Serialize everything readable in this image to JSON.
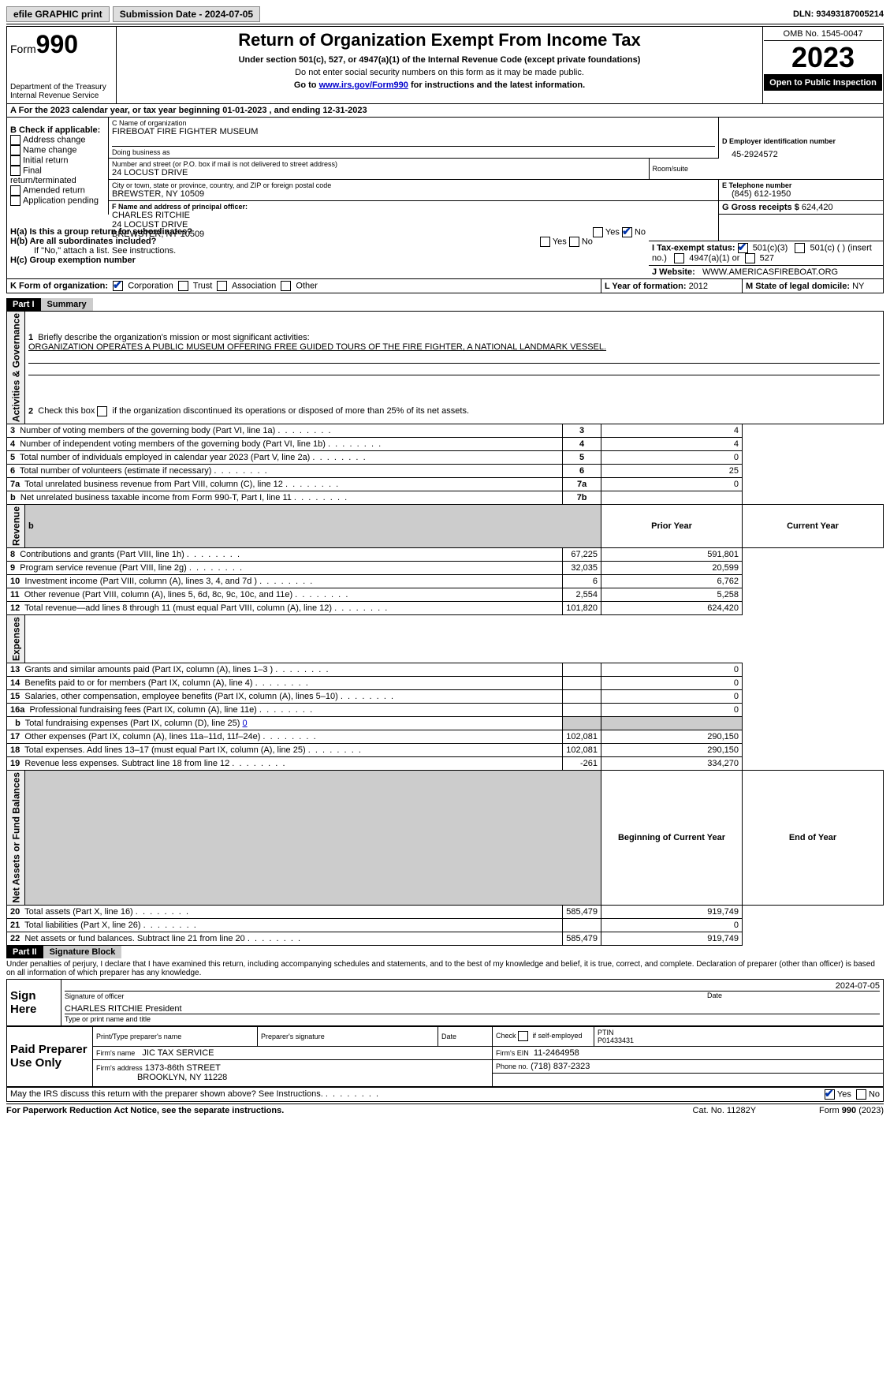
{
  "topbar": {
    "efile": "efile GRAPHIC print",
    "submission": "Submission Date - 2024-07-05",
    "dln": "DLN: 93493187005214"
  },
  "header": {
    "form_label": "Form",
    "form_num": "990",
    "title": "Return of Organization Exempt From Income Tax",
    "subtitle": "Under section 501(c), 527, or 4947(a)(1) of the Internal Revenue Code (except private foundations)",
    "note1": "Do not enter social security numbers on this form as it may be made public.",
    "note2": "Go to ",
    "note2_link": "www.irs.gov/Form990",
    "note2_tail": " for instructions and the latest information.",
    "dept": "Department of the Treasury\nInternal Revenue Service",
    "omb": "OMB No. 1545-0047",
    "year": "2023",
    "open": "Open to Public Inspection"
  },
  "rowA": "For the 2023 calendar year, or tax year beginning 01-01-2023   , and ending 12-31-2023",
  "boxB": {
    "label": "B Check if applicable:",
    "items": [
      "Address change",
      "Name change",
      "Initial return",
      "Final return/terminated",
      "Amended return",
      "Application pending"
    ]
  },
  "boxC": {
    "name_label": "C Name of organization",
    "name": "FIREBOAT FIRE FIGHTER MUSEUM",
    "dba_label": "Doing business as",
    "street_label": "Number and street (or P.O. box if mail is not delivered to street address)",
    "room_label": "Room/suite",
    "street": "24 LOCUST DRIVE",
    "city_label": "City or town, state or province, country, and ZIP or foreign postal code",
    "city": "BREWSTER, NY  10509"
  },
  "boxD": {
    "label": "D Employer identification number",
    "value": "45-2924572"
  },
  "boxE": {
    "label": "E Telephone number",
    "value": "(845) 612-1950"
  },
  "boxG": {
    "label": "G Gross receipts $ ",
    "value": "624,420"
  },
  "boxF": {
    "label": "F  Name and address of principal officer:",
    "lines": [
      "CHARLES RITCHIE",
      "24 LOCUST DRIVE",
      "BREWSTER, NY  10509"
    ]
  },
  "boxH": {
    "a": "H(a)  Is this a group return for subordinates?",
    "b": "H(b)  Are all subordinates included?",
    "b_note": "If \"No,\" attach a list. See instructions.",
    "c": "H(c)  Group exemption number"
  },
  "rowI": {
    "label": "I   Tax-exempt status:",
    "opt1": "501(c)(3)",
    "opt2": "501(c) (  ) (insert no.)",
    "opt3": "4947(a)(1) or",
    "opt4": "527"
  },
  "rowJ": {
    "label": "J   Website:",
    "value": "WWW.AMERICASFIREBOAT.ORG"
  },
  "rowK": {
    "label": "K Form of organization:",
    "opts": [
      "Corporation",
      "Trust",
      "Association",
      "Other"
    ]
  },
  "rowL": {
    "label": "L Year of formation: ",
    "value": "2012"
  },
  "rowM": {
    "label": "M State of legal domicile: ",
    "value": "NY"
  },
  "part1": {
    "hdr": "Part I",
    "title": "Summary",
    "q1": "Briefly describe the organization's mission or most significant activities:",
    "q1_ans": "ORGANIZATION OPERATES A PUBLIC MUSEUM OFFERING FREE GUIDED TOURS OF THE FIRE FIGHTER, A NATIONAL LANDMARK VESSEL.",
    "q2": "Check this box      if the organization discontinued its operations or disposed of more than 25% of its net assets.",
    "col_prior": "Prior Year",
    "col_current": "Current Year",
    "col_beg": "Beginning of Current Year",
    "col_end": "End of Year",
    "sections": {
      "gov": "Activities & Governance",
      "rev": "Revenue",
      "exp": "Expenses",
      "net": "Net Assets or Fund Balances"
    },
    "lines_gov": [
      {
        "n": "3",
        "t": "Number of voting members of the governing body (Part VI, line 1a)",
        "box": "3",
        "v": "4"
      },
      {
        "n": "4",
        "t": "Number of independent voting members of the governing body (Part VI, line 1b)",
        "box": "4",
        "v": "4"
      },
      {
        "n": "5",
        "t": "Total number of individuals employed in calendar year 2023 (Part V, line 2a)",
        "box": "5",
        "v": "0"
      },
      {
        "n": "6",
        "t": "Total number of volunteers (estimate if necessary)",
        "box": "6",
        "v": "25"
      },
      {
        "n": "7a",
        "t": "Total unrelated business revenue from Part VIII, column (C), line 12",
        "box": "7a",
        "v": "0"
      },
      {
        "n": "b",
        "t": "Net unrelated business taxable income from Form 990-T, Part I, line 11",
        "box": "7b",
        "v": ""
      }
    ],
    "lines_rev": [
      {
        "n": "8",
        "t": "Contributions and grants (Part VIII, line 1h)",
        "p": "67,225",
        "c": "591,801"
      },
      {
        "n": "9",
        "t": "Program service revenue (Part VIII, line 2g)",
        "p": "32,035",
        "c": "20,599"
      },
      {
        "n": "10",
        "t": "Investment income (Part VIII, column (A), lines 3, 4, and 7d )",
        "p": "6",
        "c": "6,762"
      },
      {
        "n": "11",
        "t": "Other revenue (Part VIII, column (A), lines 5, 6d, 8c, 9c, 10c, and 11e)",
        "p": "2,554",
        "c": "5,258"
      },
      {
        "n": "12",
        "t": "Total revenue—add lines 8 through 11 (must equal Part VIII, column (A), line 12)",
        "p": "101,820",
        "c": "624,420"
      }
    ],
    "lines_exp": [
      {
        "n": "13",
        "t": "Grants and similar amounts paid (Part IX, column (A), lines 1–3 )",
        "p": "",
        "c": "0"
      },
      {
        "n": "14",
        "t": "Benefits paid to or for members (Part IX, column (A), line 4)",
        "p": "",
        "c": "0"
      },
      {
        "n": "15",
        "t": "Salaries, other compensation, employee benefits (Part IX, column (A), lines 5–10)",
        "p": "",
        "c": "0"
      },
      {
        "n": "16a",
        "t": "Professional fundraising fees (Part IX, column (A), line 11e)",
        "p": "",
        "c": "0"
      },
      {
        "n": "b",
        "t": "Total fundraising expenses (Part IX, column (D), line 25) ",
        "link": "0",
        "shade": true
      },
      {
        "n": "17",
        "t": "Other expenses (Part IX, column (A), lines 11a–11d, 11f–24e)",
        "p": "102,081",
        "c": "290,150"
      },
      {
        "n": "18",
        "t": "Total expenses. Add lines 13–17 (must equal Part IX, column (A), line 25)",
        "p": "102,081",
        "c": "290,150"
      },
      {
        "n": "19",
        "t": "Revenue less expenses. Subtract line 18 from line 12",
        "p": "-261",
        "c": "334,270"
      }
    ],
    "lines_net": [
      {
        "n": "20",
        "t": "Total assets (Part X, line 16)",
        "p": "585,479",
        "c": "919,749"
      },
      {
        "n": "21",
        "t": "Total liabilities (Part X, line 26)",
        "p": "",
        "c": "0"
      },
      {
        "n": "22",
        "t": "Net assets or fund balances. Subtract line 21 from line 20",
        "p": "585,479",
        "c": "919,749"
      }
    ]
  },
  "part2": {
    "hdr": "Part II",
    "title": "Signature Block",
    "perjury": "Under penalties of perjury, I declare that I have examined this return, including accompanying schedules and statements, and to the best of my knowledge and belief, it is true, correct, and complete. Declaration of preparer (other than officer) is based on all information of which preparer has any knowledge.",
    "sign_here": "Sign Here",
    "sig_officer": "Signature of officer",
    "sig_name": "CHARLES RITCHIE  President",
    "sig_date": "2024-07-05",
    "sig_type": "Type or print name and title",
    "date_label": "Date",
    "paid": "Paid Preparer Use Only",
    "prep_name_label": "Print/Type preparer's name",
    "prep_sig_label": "Preparer's signature",
    "prep_check": "Check       if self-employed",
    "ptin_label": "PTIN",
    "ptin": "P01433431",
    "firm_name_label": "Firm's name",
    "firm_name": "JIC TAX SERVICE",
    "firm_ein_label": "Firm's EIN",
    "firm_ein": "11-2464958",
    "firm_addr_label": "Firm's address",
    "firm_addr1": "1373-86th STREET",
    "firm_addr2": "BROOKLYN, NY  11228",
    "phone_label": "Phone no.",
    "phone": "(718) 837-2323",
    "discuss": "May the IRS discuss this return with the preparer shown above? See Instructions."
  },
  "footer": {
    "pra": "For Paperwork Reduction Act Notice, see the separate instructions.",
    "cat": "Cat. No. 11282Y",
    "form": "Form 990 (2023)"
  }
}
